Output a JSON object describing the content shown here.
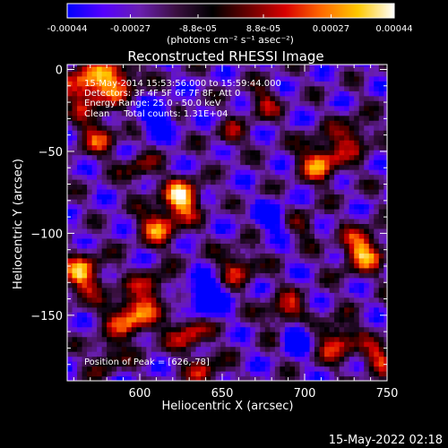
{
  "colorbar": {
    "tick_labels": [
      "-0.00044",
      "-0.00027",
      "-8.8e-05",
      "8.8e-05",
      "0.00027",
      "0.00044"
    ],
    "tick_values": [
      -0.00044,
      -0.00027,
      -8.8e-05,
      8.8e-05,
      0.00027,
      0.00044
    ],
    "range": [
      -0.00044,
      0.00044
    ],
    "unit_label": "(photons cm⁻² s⁻¹ asec⁻²)",
    "colors": [
      "#0000ff",
      "#5500ff",
      "#6a1fb0",
      "#3a1040",
      "#000000",
      "#6a0000",
      "#d80000",
      "#ff6a00",
      "#ffc800",
      "#ffffff"
    ]
  },
  "chart_data": {
    "type": "heatmap",
    "title": "Reconstructed RHESSI Image",
    "xlabel": "Heliocentric X (arcsec)",
    "ylabel": "Heliocentric Y (arcsec)",
    "xlim": [
      556,
      750
    ],
    "ylim": [
      -190,
      3
    ],
    "x_ticks": [
      600,
      650,
      700,
      750
    ],
    "y_ticks": [
      0,
      -50,
      -100,
      -150
    ],
    "x_tick_labels": [
      "600",
      "650",
      "700",
      "750"
    ],
    "y_tick_labels": [
      "0",
      "−50",
      "−100",
      "−150"
    ],
    "peak_position": [
      626,
      -78
    ],
    "annotations": [
      "15-May-2014 15:53:56.000 to 15:59:44.000",
      "Detectors: 3F 4F 5F 6F 7F 8F, Att 0",
      "Energy Range: 25.0 - 50.0 keV",
      "Clean     Total counts: 1.31E+04",
      "Position of Peak = [626,-78]"
    ],
    "hotspots": [
      {
        "x": 568,
        "y": -10,
        "amp": 0.9,
        "r": 14
      },
      {
        "x": 588,
        "y": -5,
        "amp": 0.7,
        "r": 12
      },
      {
        "x": 575,
        "y": -40,
        "amp": 0.55,
        "r": 12
      },
      {
        "x": 626,
        "y": -78,
        "amp": 1.0,
        "r": 11
      },
      {
        "x": 612,
        "y": -95,
        "amp": 0.75,
        "r": 12
      },
      {
        "x": 600,
        "y": -60,
        "amp": 0.45,
        "r": 10
      },
      {
        "x": 565,
        "y": -125,
        "amp": 0.8,
        "r": 13
      },
      {
        "x": 595,
        "y": -150,
        "amp": 0.85,
        "r": 14
      },
      {
        "x": 608,
        "y": -132,
        "amp": 0.5,
        "r": 10
      },
      {
        "x": 630,
        "y": -160,
        "amp": 0.65,
        "r": 12
      },
      {
        "x": 660,
        "y": -120,
        "amp": 0.6,
        "r": 11
      },
      {
        "x": 690,
        "y": -150,
        "amp": 0.75,
        "r": 12
      },
      {
        "x": 710,
        "y": -55,
        "amp": 0.8,
        "r": 13
      },
      {
        "x": 730,
        "y": -40,
        "amp": 0.55,
        "r": 11
      },
      {
        "x": 735,
        "y": -110,
        "amp": 0.85,
        "r": 13
      },
      {
        "x": 720,
        "y": -165,
        "amp": 0.7,
        "r": 12
      },
      {
        "x": 745,
        "y": -175,
        "amp": 0.6,
        "r": 10
      },
      {
        "x": 675,
        "y": -20,
        "amp": 0.45,
        "r": 10
      },
      {
        "x": 655,
        "y": -40,
        "amp": 0.4,
        "r": 9
      },
      {
        "x": 640,
        "y": -185,
        "amp": 0.55,
        "r": 10
      },
      {
        "x": 700,
        "y": -95,
        "amp": 0.35,
        "r": 9
      },
      {
        "x": 580,
        "y": -175,
        "amp": 0.45,
        "r": 10
      }
    ],
    "coldspots": [
      {
        "x": 640,
        "y": -140,
        "amp": 0.9,
        "r": 11
      },
      {
        "x": 695,
        "y": -160,
        "amp": 0.8,
        "r": 10
      },
      {
        "x": 610,
        "y": -30,
        "amp": 0.6,
        "r": 10
      },
      {
        "x": 680,
        "y": -90,
        "amp": 0.5,
        "r": 9
      }
    ]
  },
  "footer": {
    "timestamp": "15-May-2022 02:18"
  }
}
